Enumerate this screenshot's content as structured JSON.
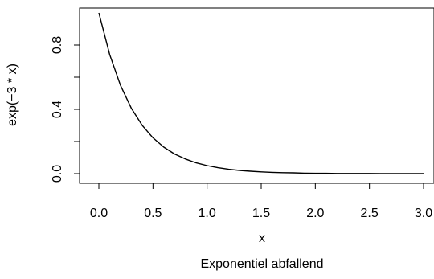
{
  "chart_data": {
    "type": "line",
    "title": "",
    "subtitle": "",
    "xlabel": "x",
    "ylabel": "exp(−3 * x)",
    "caption": "Exponentiel abfallend",
    "xlim": [
      0,
      3
    ],
    "ylim": [
      0,
      1
    ],
    "x_ticks": [
      0.0,
      0.5,
      1.0,
      1.5,
      2.0,
      2.5,
      3.0
    ],
    "x_tick_labels": [
      "0.0",
      "0.5",
      "1.0",
      "1.5",
      "2.0",
      "2.5",
      "3.0"
    ],
    "y_ticks": [
      0.0,
      0.4,
      0.8
    ],
    "y_tick_labels": [
      "0.0",
      "0.4",
      "0.8"
    ],
    "y_minor_ticks": [
      0.2,
      0.6
    ],
    "grid": false,
    "legend": "none",
    "series": [
      {
        "color": "#000000",
        "x": [
          0.0,
          0.1,
          0.2,
          0.3,
          0.4,
          0.5,
          0.6,
          0.7,
          0.8,
          0.9,
          1.0,
          1.1,
          1.2,
          1.3,
          1.4,
          1.5,
          1.6,
          1.7,
          1.8,
          1.9,
          2.0,
          2.1,
          2.2,
          2.3,
          2.4,
          2.5,
          2.6,
          2.7,
          2.8,
          2.9,
          3.0
        ],
        "y": [
          1.0,
          0.741,
          0.549,
          0.407,
          0.301,
          0.223,
          0.165,
          0.122,
          0.091,
          0.067,
          0.05,
          0.037,
          0.027,
          0.02,
          0.015,
          0.011,
          0.008,
          0.006,
          0.005,
          0.003,
          0.002,
          0.002,
          0.001,
          0.001,
          0.001,
          0.001,
          0.0,
          0.0,
          0.0,
          0.0,
          0.0
        ]
      }
    ]
  }
}
